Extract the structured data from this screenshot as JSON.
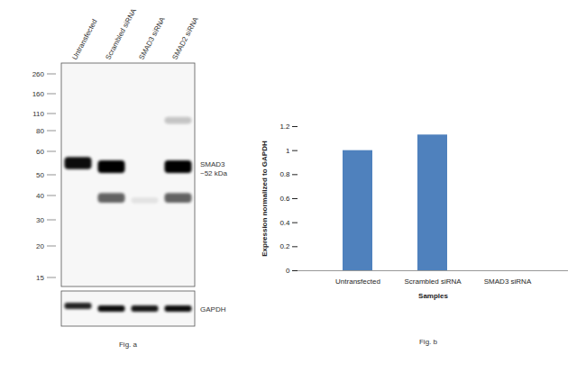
{
  "blot": {
    "title": "Fig. a",
    "lanes": [
      "Untransfected",
      "Scrambled siRNA",
      "SMAD3 siRNA",
      "SMAD2 siRNA"
    ],
    "markers": [
      260,
      160,
      110,
      80,
      60,
      50,
      40,
      30,
      20,
      15
    ],
    "target_label": [
      "SMAD3",
      "~52 kDa"
    ],
    "loading_label": "GAPDH",
    "bands": [
      {
        "lane": 0,
        "kda": 55,
        "intensity": 0.95
      },
      {
        "lane": 1,
        "kda": 53.5,
        "intensity": 1
      },
      {
        "lane": 1,
        "kda": 39,
        "intensity": 0.6
      },
      {
        "lane": 2,
        "kda": 38,
        "intensity": 0.08
      },
      {
        "lane": 3,
        "kda": 53.5,
        "intensity": 1
      },
      {
        "lane": 3,
        "kda": 39,
        "intensity": 0.6
      },
      {
        "lane": 3,
        "kda": 98,
        "intensity": 0.2
      }
    ],
    "loading_bands": [
      0.85,
      0.95,
      0.9,
      0.95
    ]
  },
  "chart_data": {
    "type": "bar",
    "title": "Fig. b",
    "x_label": "Samples",
    "y_label": "Expression normalized to GAPDH",
    "categories": [
      "Untransfected",
      "Scrambled siRNA",
      "SMAD3 siRNA"
    ],
    "values": [
      1,
      1.13,
      0
    ],
    "color": "#4f81bd",
    "ylim": [
      0,
      1.2
    ],
    "yticks": [
      0,
      0.2,
      0.4,
      0.6,
      0.8,
      1,
      1.2
    ],
    "grid": false
  }
}
